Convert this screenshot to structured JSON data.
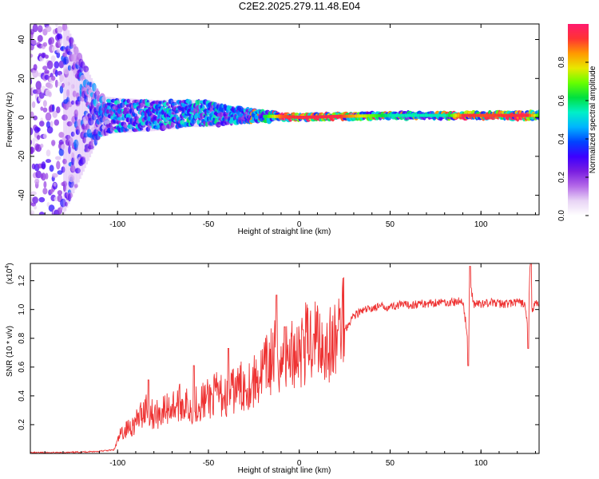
{
  "title": "C2E2.2025.279.11.48.E04",
  "chart_data": [
    {
      "type": "heatmap",
      "title": "C2E2.2025.279.11.48.E04",
      "xlabel": "Height of straight line (km)",
      "ylabel": "Frequency (Hz)",
      "xlim": [
        -148,
        132
      ],
      "ylim": [
        -50,
        48
      ],
      "xticks": [
        -100,
        -50,
        0,
        50,
        100
      ],
      "yticks": [
        -40,
        -20,
        0,
        20,
        40
      ],
      "colorbar": {
        "label": "Normalized spectral amplitude",
        "ticks": [
          0.0,
          0.2,
          0.4,
          0.6,
          0.8
        ],
        "range": [
          0,
          1
        ],
        "colormap": [
          "#ffffff",
          "#e8d4f5",
          "#b469e8",
          "#7a1ee0",
          "#3d00ff",
          "#0044ff",
          "#00b4ff",
          "#00f0c8",
          "#00e040",
          "#66ff00",
          "#e8e800",
          "#ff9900",
          "#ff3333",
          "#ff1a6e"
        ]
      },
      "description_series": {
        "x_km": [
          -148,
          -130,
          -110,
          -100,
          -80,
          -60,
          -50,
          -40,
          -30,
          -20,
          -10,
          0,
          20,
          50,
          80,
          90,
          100,
          125,
          132
        ],
        "signal_center_hz": [
          0,
          0,
          1,
          1,
          1,
          2,
          2,
          1,
          1,
          0.5,
          0.5,
          0,
          0.5,
          1,
          1,
          1,
          1,
          1,
          1
        ],
        "signal_halfwidth_hz": [
          50,
          50,
          10,
          9,
          8,
          7,
          7,
          5,
          4,
          3,
          2,
          1.5,
          1.5,
          1.5,
          1.5,
          1.5,
          1.5,
          2,
          2
        ],
        "peak_amplitude": [
          0.25,
          0.35,
          0.45,
          0.5,
          0.5,
          0.55,
          0.55,
          0.5,
          0.5,
          0.6,
          0.9,
          0.95,
          0.95,
          0.55,
          0.55,
          0.95,
          0.9,
          0.95,
          0.6
        ]
      }
    },
    {
      "type": "line",
      "title": "",
      "xlabel": "Height of straight line (km)",
      "ylabel": "SNR (10 * v/v)",
      "yscale_label": "(x10",
      "yscale_exp": "4",
      "xlim": [
        -148,
        132
      ],
      "ylim": [
        0,
        1.32
      ],
      "xticks": [
        -100,
        -50,
        0,
        50,
        100
      ],
      "yticks": [
        0.2,
        0.4,
        0.6,
        0.8,
        1.0,
        1.2
      ],
      "color": "#ee3333",
      "series": [
        {
          "name": "SNR",
          "x": [
            -148,
            -130,
            -110,
            -102,
            -98,
            -90,
            -84,
            -80,
            -75,
            -70,
            -65,
            -60,
            -55,
            -50,
            -45,
            -40,
            -35,
            -30,
            -25,
            -20,
            -15,
            -12,
            -10,
            -5,
            0,
            5,
            10,
            15,
            20,
            25,
            30,
            35,
            40,
            45,
            50,
            55,
            60,
            65,
            70,
            75,
            80,
            85,
            90,
            93,
            94,
            96,
            100,
            105,
            110,
            115,
            120,
            124,
            126,
            127,
            128,
            130,
            132
          ],
          "y": [
            0.0,
            0.0,
            0.01,
            0.02,
            0.12,
            0.18,
            0.28,
            0.22,
            0.25,
            0.28,
            0.3,
            0.27,
            0.3,
            0.32,
            0.35,
            0.33,
            0.38,
            0.4,
            0.42,
            0.48,
            0.55,
            0.6,
            0.52,
            0.58,
            0.62,
            0.66,
            0.7,
            0.62,
            0.65,
            0.86,
            0.96,
            0.99,
            1.01,
            1.02,
            1.02,
            1.03,
            1.03,
            1.04,
            1.04,
            1.05,
            1.05,
            1.05,
            1.06,
            0.78,
            1.18,
            1.04,
            1.04,
            1.05,
            1.04,
            1.04,
            1.05,
            1.04,
            0.85,
            1.3,
            1.0,
            1.04,
            1.04
          ],
          "peaks": [
            {
              "x": -83,
              "y": 0.51
            },
            {
              "x": -58,
              "y": 0.61
            },
            {
              "x": -39,
              "y": 0.73
            },
            {
              "x": -12.5,
              "y": 1.1
            },
            {
              "x": -8,
              "y": 0.88
            },
            {
              "x": 2,
              "y": 0.86
            },
            {
              "x": 8,
              "y": 0.83
            },
            {
              "x": 94,
              "y": 1.3
            },
            {
              "x": 93,
              "y": 0.61
            },
            {
              "x": 126,
              "y": 0.73
            },
            {
              "x": 127.5,
              "y": 1.32
            }
          ]
        }
      ]
    }
  ]
}
